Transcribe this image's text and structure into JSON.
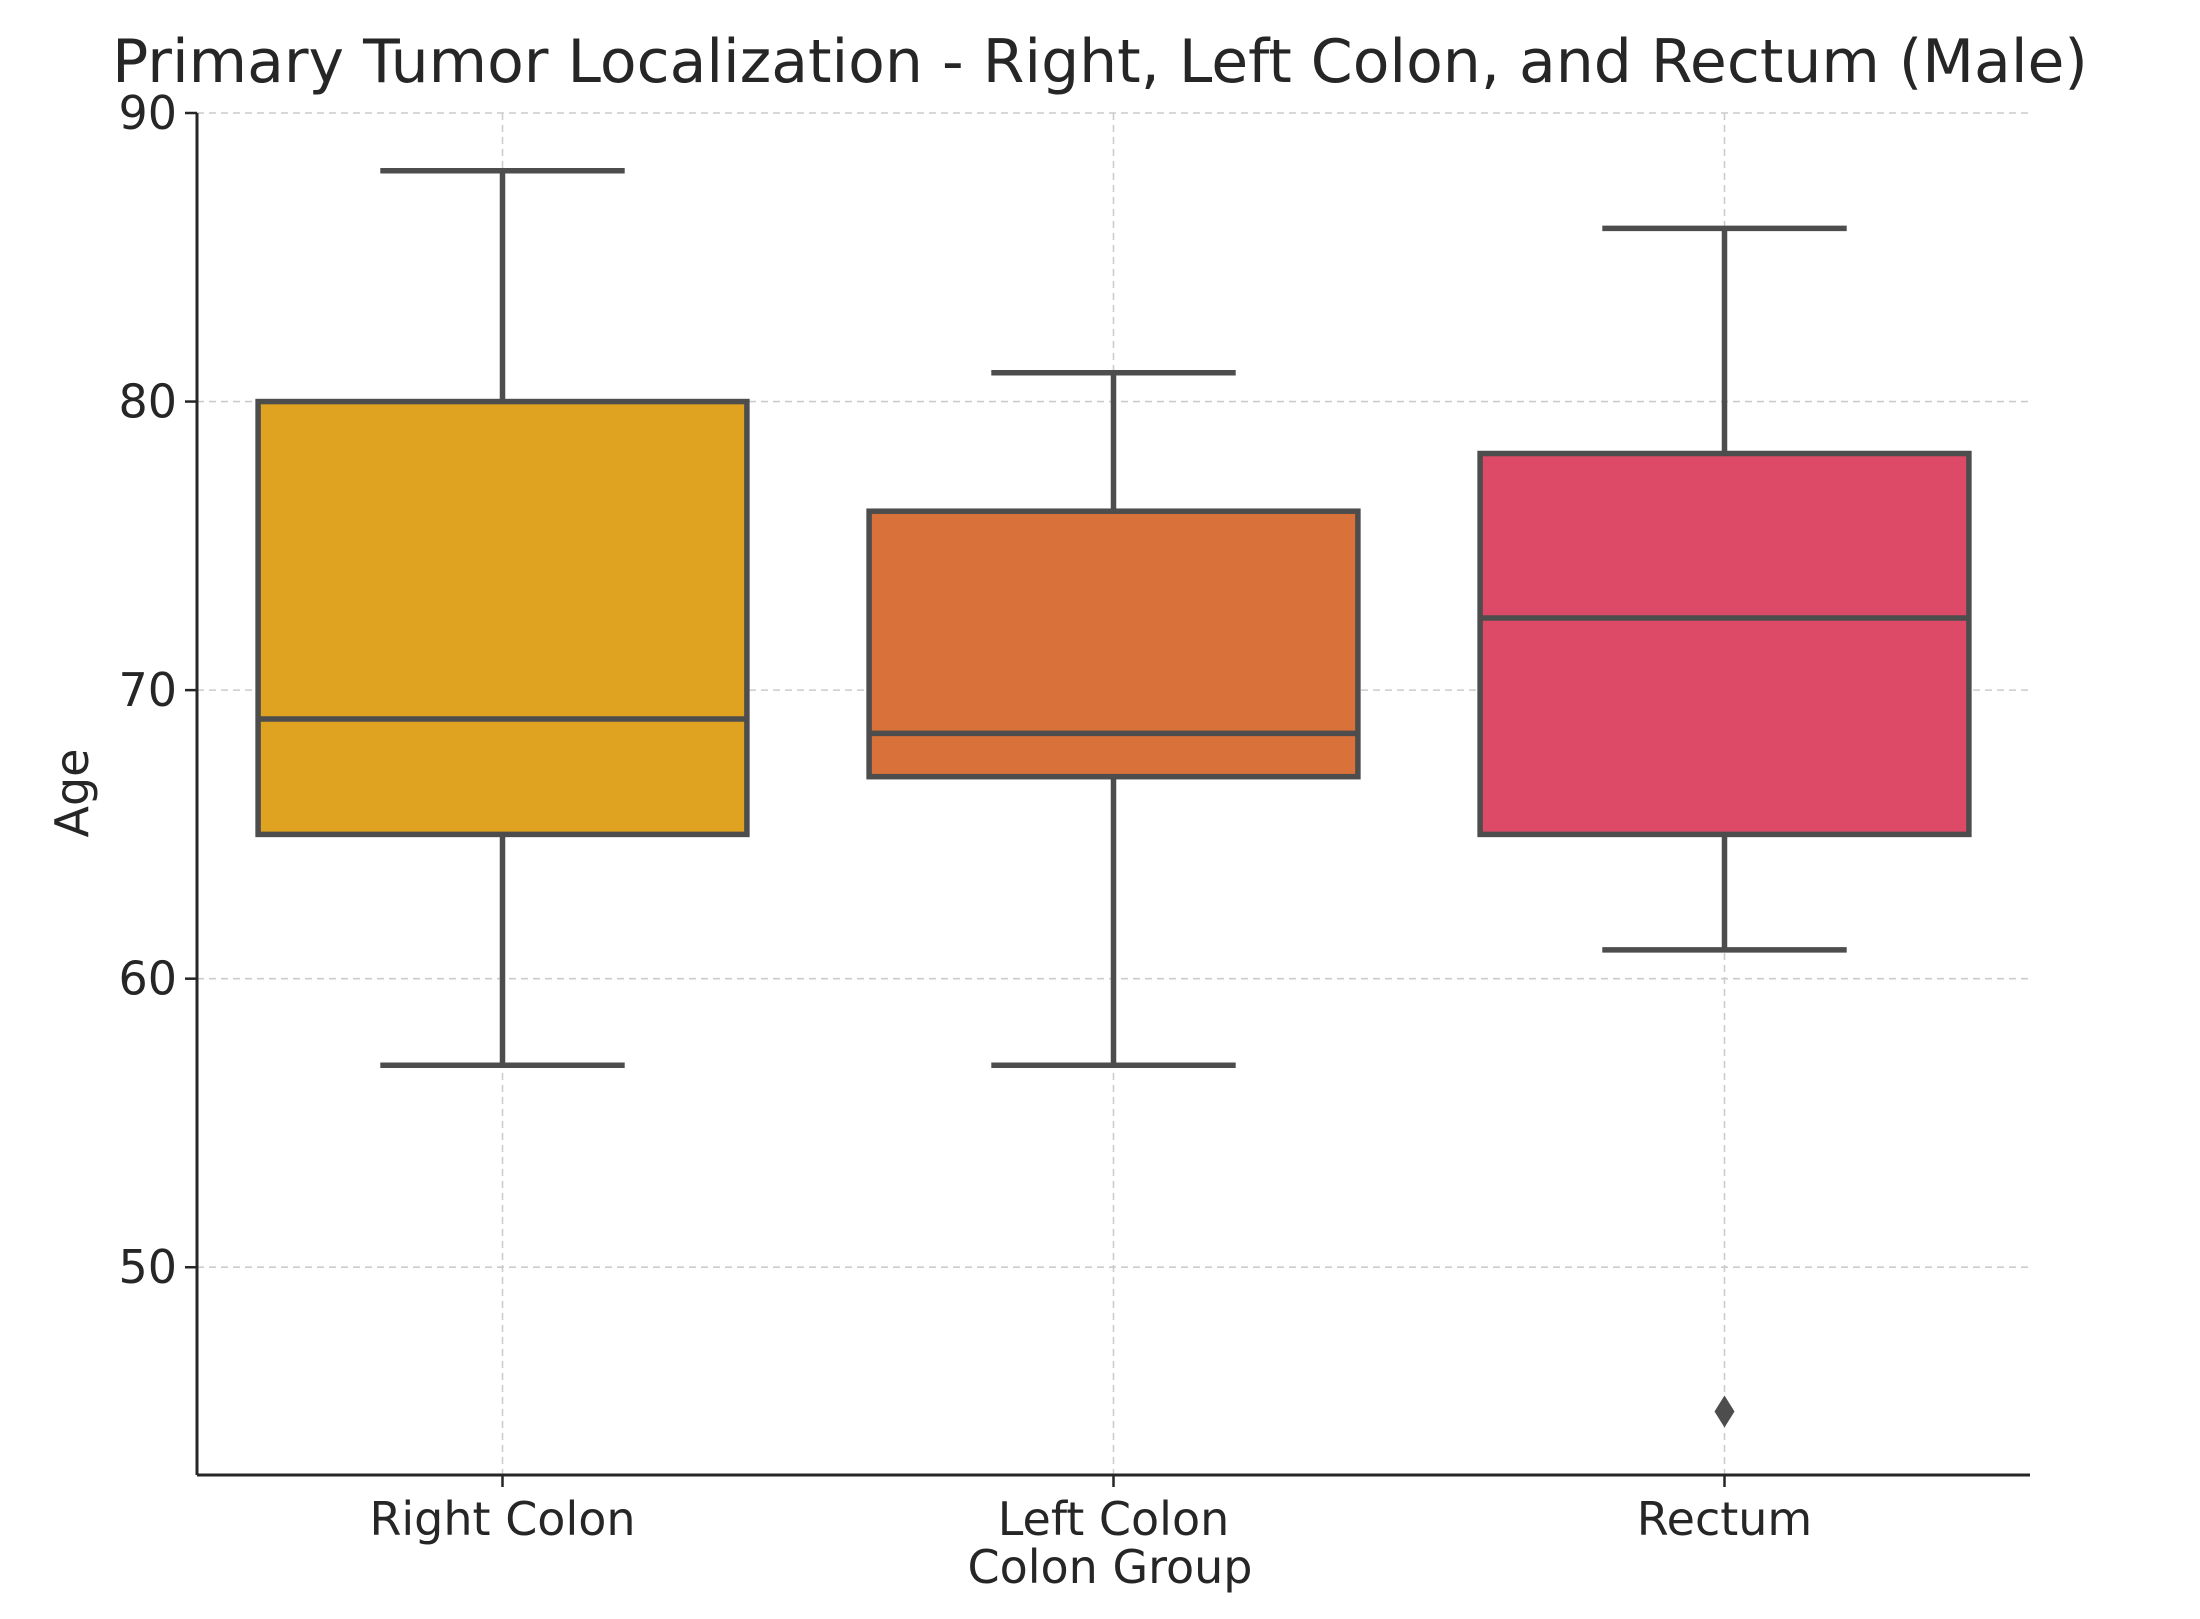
{
  "chart_data": {
    "type": "box",
    "title": "Primary Tumor Localization - Right, Left Colon, and Rectum (Male)",
    "xlabel": "Colon Group",
    "ylabel": "Age",
    "ylim": [
      42.8,
      90
    ],
    "yticks": [
      "50",
      "60",
      "70",
      "80",
      "90"
    ],
    "grid": true,
    "categories": [
      "Right Colon",
      "Left Colon",
      "Rectum"
    ],
    "boxes": [
      {
        "category": "Right Colon",
        "whisker_low": 57,
        "q1": 65,
        "median": 69,
        "q3": 80,
        "whisker_high": 88,
        "outliers": [],
        "color": "#dfa321"
      },
      {
        "category": "Left Colon",
        "whisker_low": 57,
        "q1": 67,
        "median": 68.5,
        "q3": 76.2,
        "whisker_high": 81,
        "outliers": [],
        "color": "#d9713a"
      },
      {
        "category": "Rectum",
        "whisker_low": 61,
        "q1": 65,
        "median": 72.5,
        "q3": 78.2,
        "whisker_high": 86,
        "outliers": [
          45
        ],
        "color": "#dc4a67"
      }
    ],
    "line_color": "#4d4d4d"
  }
}
